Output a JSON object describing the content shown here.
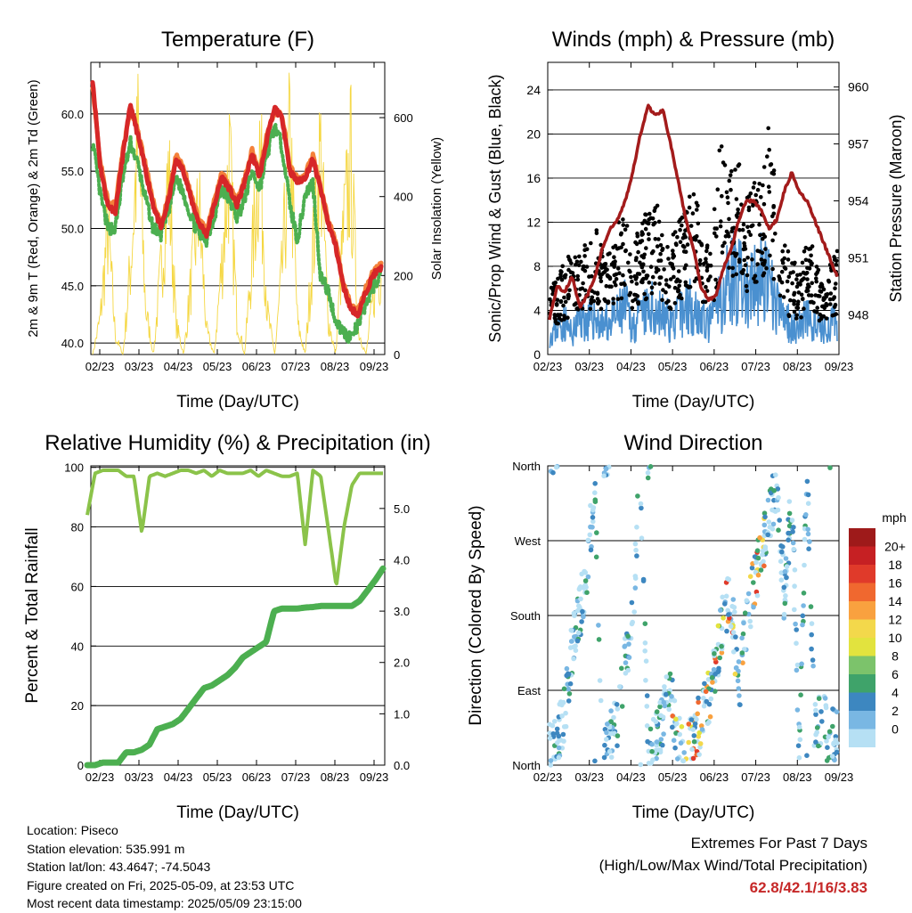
{
  "chart_data": [
    {
      "type": "line",
      "title": "Temperature (F)",
      "xlabel": "Time (Day/UTC)",
      "ylabel": "2m & 9m T (Red, Orange) & 2m Td (Green)",
      "y2label": "Solar Insolation (Yellow)",
      "xticks": [
        "02/23",
        "03/23",
        "04/23",
        "05/23",
        "06/23",
        "07/23",
        "08/23",
        "09/23"
      ],
      "yticks": [
        "40.0",
        "45.0",
        "50.0",
        "55.0",
        "60.0"
      ],
      "y2ticks": [
        "0",
        "200",
        "400",
        "600"
      ],
      "ylim": [
        39,
        64.5
      ],
      "y2lim": [
        0,
        740
      ],
      "grid": "horizontal",
      "series": [
        {
          "name": "2m T",
          "color": "#d62728",
          "values": [
            63.0,
            55.5,
            52.0,
            51.5,
            56.5,
            60.8,
            58.0,
            55.0,
            52.0,
            50.0,
            52.5,
            56.0,
            55.0,
            52.5,
            50.5,
            49.5,
            52.0,
            54.5,
            53.5,
            52.0,
            54.0,
            56.5,
            54.5,
            58.0,
            60.5,
            59.5,
            55.0,
            54.0,
            54.5,
            56.0,
            53.5,
            50.5,
            48.5,
            45.0,
            43.0,
            42.5,
            44.5,
            46.0,
            46.5
          ]
        },
        {
          "name": "9m T",
          "color": "#f4813a",
          "values": [
            62.5,
            55.8,
            52.5,
            52.0,
            56.8,
            60.5,
            58.3,
            55.5,
            52.3,
            50.3,
            52.8,
            56.3,
            55.3,
            52.8,
            50.8,
            49.8,
            52.3,
            54.8,
            53.8,
            52.3,
            54.3,
            56.8,
            54.8,
            58.3,
            60.2,
            59.8,
            55.3,
            54.3,
            54.8,
            56.3,
            53.8,
            50.8,
            48.8,
            45.3,
            43.3,
            42.8,
            44.8,
            46.3,
            46.8
          ]
        },
        {
          "name": "2m Td",
          "color": "#4caf50",
          "values": [
            57.5,
            53.0,
            50.0,
            50.0,
            54.5,
            57.5,
            55.5,
            52.5,
            50.0,
            49.5,
            51.5,
            54.5,
            53.0,
            51.0,
            49.5,
            49.0,
            51.0,
            53.5,
            52.5,
            51.0,
            52.5,
            55.0,
            53.5,
            56.5,
            59.0,
            57.0,
            52.0,
            49.0,
            53.0,
            54.0,
            46.0,
            44.5,
            42.0,
            41.0,
            40.5,
            41.5,
            43.5,
            45.0,
            46.0
          ]
        },
        {
          "name": "Solar Insolation",
          "color": "#f5d742",
          "values": [
            0,
            120,
            420,
            60,
            0,
            300,
            720,
            150,
            0,
            280,
            600,
            100,
            0,
            250,
            500,
            80,
            0,
            300,
            650,
            120,
            0,
            320,
            700,
            140,
            0,
            300,
            720,
            100,
            0,
            350,
            680,
            120,
            0,
            400,
            650,
            80,
            0,
            200,
            300
          ]
        }
      ]
    },
    {
      "type": "scatter",
      "title": "Winds (mph) & Pressure (mb)",
      "xlabel": "Time (Day/UTC)",
      "ylabel": "Sonic/Prop Wind & Gust (Blue, Black)",
      "y2label": "Station Pressure (Maroon)",
      "xticks": [
        "02/23",
        "03/23",
        "04/23",
        "05/23",
        "06/23",
        "07/23",
        "08/23",
        "09/23"
      ],
      "yticks": [
        "0",
        "4",
        "8",
        "12",
        "16",
        "20",
        "24"
      ],
      "y2ticks": [
        "948",
        "951",
        "954",
        "957",
        "960"
      ],
      "ylim": [
        0,
        26.5
      ],
      "y2lim": [
        945.9,
        961.3
      ],
      "grid": "horizontal",
      "series": [
        {
          "name": "Wind",
          "color": "#4a90d0",
          "values": [
            2,
            3,
            3.5,
            2,
            4,
            3.5,
            4,
            3,
            3.5,
            4,
            5,
            3,
            4,
            4.5,
            5,
            4,
            3.5,
            4,
            5,
            5.5,
            4,
            3,
            5,
            6,
            9,
            8,
            6,
            7,
            8,
            7,
            5,
            4,
            3,
            3,
            4,
            3,
            2.5,
            3,
            3.5
          ]
        },
        {
          "name": "Gust",
          "color": "#000000",
          "values": [
            5,
            6,
            7,
            8,
            9,
            8,
            10,
            8,
            9,
            10,
            11,
            8,
            10,
            11,
            12,
            10,
            9,
            10,
            12,
            13,
            10,
            8,
            12,
            20,
            14,
            15,
            12,
            13,
            15,
            18,
            12,
            9,
            7,
            7,
            9,
            8,
            6,
            7,
            8
          ]
        },
        {
          "name": "Station Pressure",
          "color": "#a31b1b",
          "values": [
            947.8,
            949.5,
            949.2,
            950.0,
            948.4,
            949.0,
            950.0,
            951.5,
            952.5,
            953.0,
            954.0,
            955.5,
            957.5,
            959.0,
            958.5,
            958.8,
            957.0,
            955.0,
            953.0,
            951.5,
            949.5,
            948.8,
            949.0,
            950.5,
            951.5,
            953.0,
            954.0,
            954.0,
            953.5,
            952.5,
            953.0,
            954.5,
            955.5,
            954.5,
            954.0,
            953.0,
            952.0,
            951.0,
            950.0
          ]
        }
      ]
    },
    {
      "type": "line",
      "title": "Relative Humidity (%) & Precipitation (in)",
      "xlabel": "Time (Day/UTC)",
      "ylabel": "Percent & Total Rainfall",
      "xticks": [
        "02/23",
        "03/23",
        "04/23",
        "05/23",
        "06/23",
        "07/23",
        "08/23",
        "09/23"
      ],
      "yticks": [
        "0",
        "20",
        "40",
        "60",
        "80",
        "100"
      ],
      "y2ticks": [
        "0.0",
        "1.0",
        "2.0",
        "3.0",
        "4.0",
        "5.0"
      ],
      "ylim": [
        0,
        100.5
      ],
      "y2lim": [
        0,
        5.83
      ],
      "grid": "horizontal",
      "series": [
        {
          "name": "Relative Humidity",
          "color": "#8bc34a",
          "values": [
            84,
            98,
            99,
            99,
            99,
            97,
            97,
            78,
            97,
            98,
            97,
            98,
            99,
            99,
            98,
            99,
            97,
            99,
            98,
            98,
            98,
            99,
            97,
            99,
            98,
            97,
            97,
            98,
            74,
            99,
            97,
            79,
            60,
            80,
            94,
            98,
            98,
            98,
            98
          ]
        },
        {
          "name": "Total Precipitation",
          "color": "#4caf50",
          "values": [
            0,
            0,
            0.05,
            0.05,
            0.05,
            0.25,
            0.25,
            0.3,
            0.4,
            0.7,
            0.75,
            0.8,
            0.9,
            1.1,
            1.3,
            1.5,
            1.55,
            1.65,
            1.75,
            1.9,
            2.1,
            2.2,
            2.3,
            2.4,
            3.0,
            3.05,
            3.05,
            3.05,
            3.07,
            3.08,
            3.1,
            3.1,
            3.1,
            3.1,
            3.1,
            3.2,
            3.4,
            3.6,
            3.83
          ]
        }
      ]
    },
    {
      "type": "scatter",
      "title": "Wind Direction",
      "xlabel": "Time (Day/UTC)",
      "ylabel": "Direction (Colored By Speed)",
      "xticks": [
        "02/23",
        "03/23",
        "04/23",
        "05/23",
        "06/23",
        "07/23",
        "08/23",
        "09/23"
      ],
      "yticks": [
        "North",
        "East",
        "South",
        "West",
        "North"
      ],
      "ylim": [
        0,
        360
      ],
      "grid": "horizontal",
      "colorbar": {
        "title": "mph",
        "labels": [
          "20+",
          "18",
          "16",
          "14",
          "12",
          "10",
          "8",
          "6",
          "4",
          "2",
          "0"
        ],
        "colors": [
          "#9e1a1a",
          "#c62023",
          "#e03a2a",
          "#f0682f",
          "#f9a13f",
          "#f3d84b",
          "#e2e33e",
          "#7cc36b",
          "#3fa36a",
          "#3d87c0",
          "#79b7e3",
          "#b6e0f4"
        ]
      },
      "series": [
        {
          "name": "Direction",
          "values": [
            20,
            30,
            60,
            140,
            180,
            240,
            340,
            10,
            30,
            60,
            120,
            180,
            350,
            20,
            30,
            60,
            90,
            30,
            20,
            40,
            50,
            80,
            120,
            180,
            200,
            90,
            170,
            220,
            260,
            300,
            340,
            200,
            320,
            20,
            350,
            40,
            60,
            30,
            40
          ]
        }
      ]
    }
  ],
  "station": {
    "location": "Location: Piseco",
    "elevation": "Station elevation: 535.991 m",
    "latlon": "Station lat/lon: 43.4647; -74.5043",
    "created": "Figure created on Fri, 2025-05-09, at 23:53 UTC",
    "recent": "Most recent data timestamp: 2025/05/09 23:15:00"
  },
  "extremes": {
    "title": "Extremes For Past 7 Days",
    "subtitle": "(High/Low/Max Wind/Total Precipitation)",
    "values": "62.8/42.1/16/3.83"
  }
}
